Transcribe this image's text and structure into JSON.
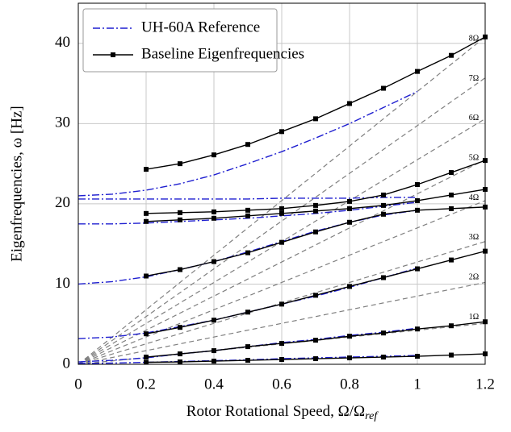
{
  "chart_data": {
    "type": "line",
    "xlabel": "Rotor Rotational Speed, Ω/Ω",
    "xlabel_sub": "ref",
    "ylabel": "Eigenfrequencies, ω [Hz]",
    "xlim": [
      0,
      1.2
    ],
    "ylim": [
      0,
      45
    ],
    "xticks": [
      0,
      0.2,
      0.4,
      0.6,
      0.8,
      1,
      1.2
    ],
    "yticks": [
      0,
      10,
      20,
      30,
      40
    ],
    "grid": true,
    "legend": "upper left",
    "series": [
      {
        "name": "UH-60A Reference",
        "color": "#1f1fd0",
        "style": "dash-dot",
        "markers": false,
        "x": [
          0,
          0.1,
          0.2,
          0.3,
          0.4,
          0.5,
          0.6,
          0.7,
          0.8,
          0.9,
          1.0
        ],
        "values": [
          [
            0.1,
            0.15,
            0.25,
            0.35,
            0.45,
            0.55,
            0.7,
            0.8,
            0.9,
            1.0,
            1.1
          ],
          [
            0.3,
            0.5,
            0.8,
            1.3,
            1.7,
            2.2,
            2.7,
            3.1,
            3.6,
            4.0,
            4.5
          ],
          [
            3.2,
            3.4,
            3.9,
            4.7,
            5.5,
            6.5,
            7.5,
            8.5,
            9.6,
            10.8,
            12.0
          ],
          [
            10.0,
            10.3,
            10.9,
            11.8,
            12.8,
            14.0,
            15.3,
            16.6,
            17.7,
            18.6,
            19.2
          ],
          [
            17.5,
            17.5,
            17.6,
            17.8,
            18.0,
            18.2,
            18.5,
            18.8,
            19.2,
            19.7,
            20.2
          ],
          [
            20.6,
            20.6,
            20.6,
            20.6,
            20.6,
            20.6,
            20.7,
            20.7,
            20.7,
            20.8,
            20.8
          ],
          [
            21.0,
            21.2,
            21.7,
            22.5,
            23.6,
            25.0,
            26.5,
            28.2,
            30.0,
            32.0,
            34.0
          ]
        ]
      },
      {
        "name": "Baseline Eigenfrequencies",
        "color": "#000000",
        "style": "solid",
        "markers": true,
        "x": [
          0.2,
          0.3,
          0.4,
          0.5,
          0.6,
          0.7,
          0.8,
          0.9,
          1.0,
          1.1,
          1.2
        ],
        "values": [
          [
            0.25,
            0.3,
            0.4,
            0.5,
            0.6,
            0.7,
            0.8,
            0.9,
            1.0,
            1.15,
            1.3
          ],
          [
            0.9,
            1.3,
            1.7,
            2.2,
            2.6,
            3.0,
            3.5,
            3.9,
            4.4,
            4.8,
            5.3
          ],
          [
            3.8,
            4.6,
            5.5,
            6.5,
            7.5,
            8.6,
            9.7,
            10.8,
            11.9,
            13.0,
            14.1
          ],
          [
            11.0,
            11.8,
            12.8,
            13.9,
            15.2,
            16.5,
            17.7,
            18.7,
            19.2,
            19.4,
            19.6
          ],
          [
            17.8,
            18.0,
            18.2,
            18.5,
            18.8,
            19.1,
            19.4,
            19.8,
            20.4,
            21.1,
            21.8
          ],
          [
            18.8,
            18.9,
            19.0,
            19.2,
            19.4,
            19.8,
            20.3,
            21.1,
            22.4,
            23.9,
            25.4
          ],
          [
            24.3,
            25.0,
            26.1,
            27.4,
            29.0,
            30.6,
            32.5,
            34.4,
            36.5,
            38.5,
            40.8
          ]
        ]
      }
    ],
    "reference_lines": {
      "color": "#808080",
      "x": [
        0,
        1.2
      ],
      "series": [
        {
          "name": "1Ω",
          "values": [
            0,
            5.1
          ]
        },
        {
          "name": "2Ω",
          "values": [
            0,
            10.2
          ]
        },
        {
          "name": "3Ω",
          "values": [
            0,
            15.3
          ]
        },
        {
          "name": "4Ω",
          "values": [
            0,
            20.4
          ]
        },
        {
          "name": "5Ω",
          "values": [
            0,
            25.5
          ]
        },
        {
          "name": "6Ω",
          "values": [
            0,
            30.6
          ]
        },
        {
          "name": "7Ω",
          "values": [
            0,
            35.7
          ]
        },
        {
          "name": "8Ω",
          "values": [
            0,
            40.8
          ]
        }
      ]
    }
  }
}
